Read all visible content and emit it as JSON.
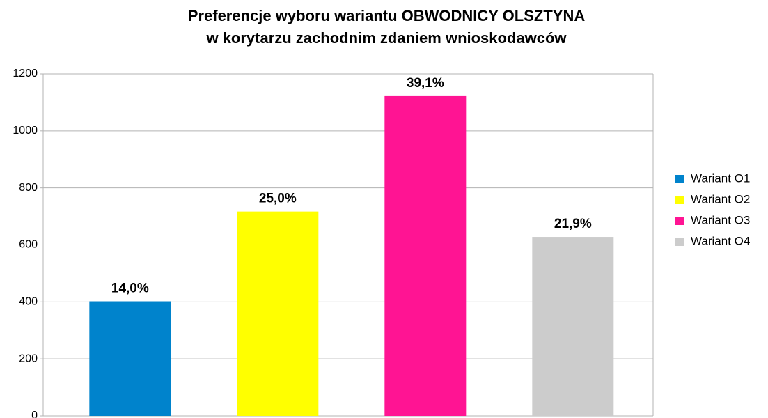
{
  "chart_data": {
    "type": "bar",
    "title": [
      "Preferencje wyboru wariantu OBWODNICY OLSZTYNA",
      "w korytarzu zachodnim zdaniem wnioskodawców"
    ],
    "categories": [
      "Wariant O1",
      "Wariant O2",
      "Wariant O3",
      "Wariant O4"
    ],
    "values": [
      402,
      717,
      1122,
      628
    ],
    "value_labels": [
      "14,0%",
      "25,0%",
      "39,1%",
      "21,9%"
    ],
    "colors": [
      "#0083cc",
      "#ffff00",
      "#ff1493",
      "#cccccc"
    ],
    "ylim": [
      0,
      1200
    ],
    "yticks": [
      0,
      200,
      400,
      600,
      800,
      1000,
      1200
    ],
    "grid": true,
    "legend": "right"
  }
}
